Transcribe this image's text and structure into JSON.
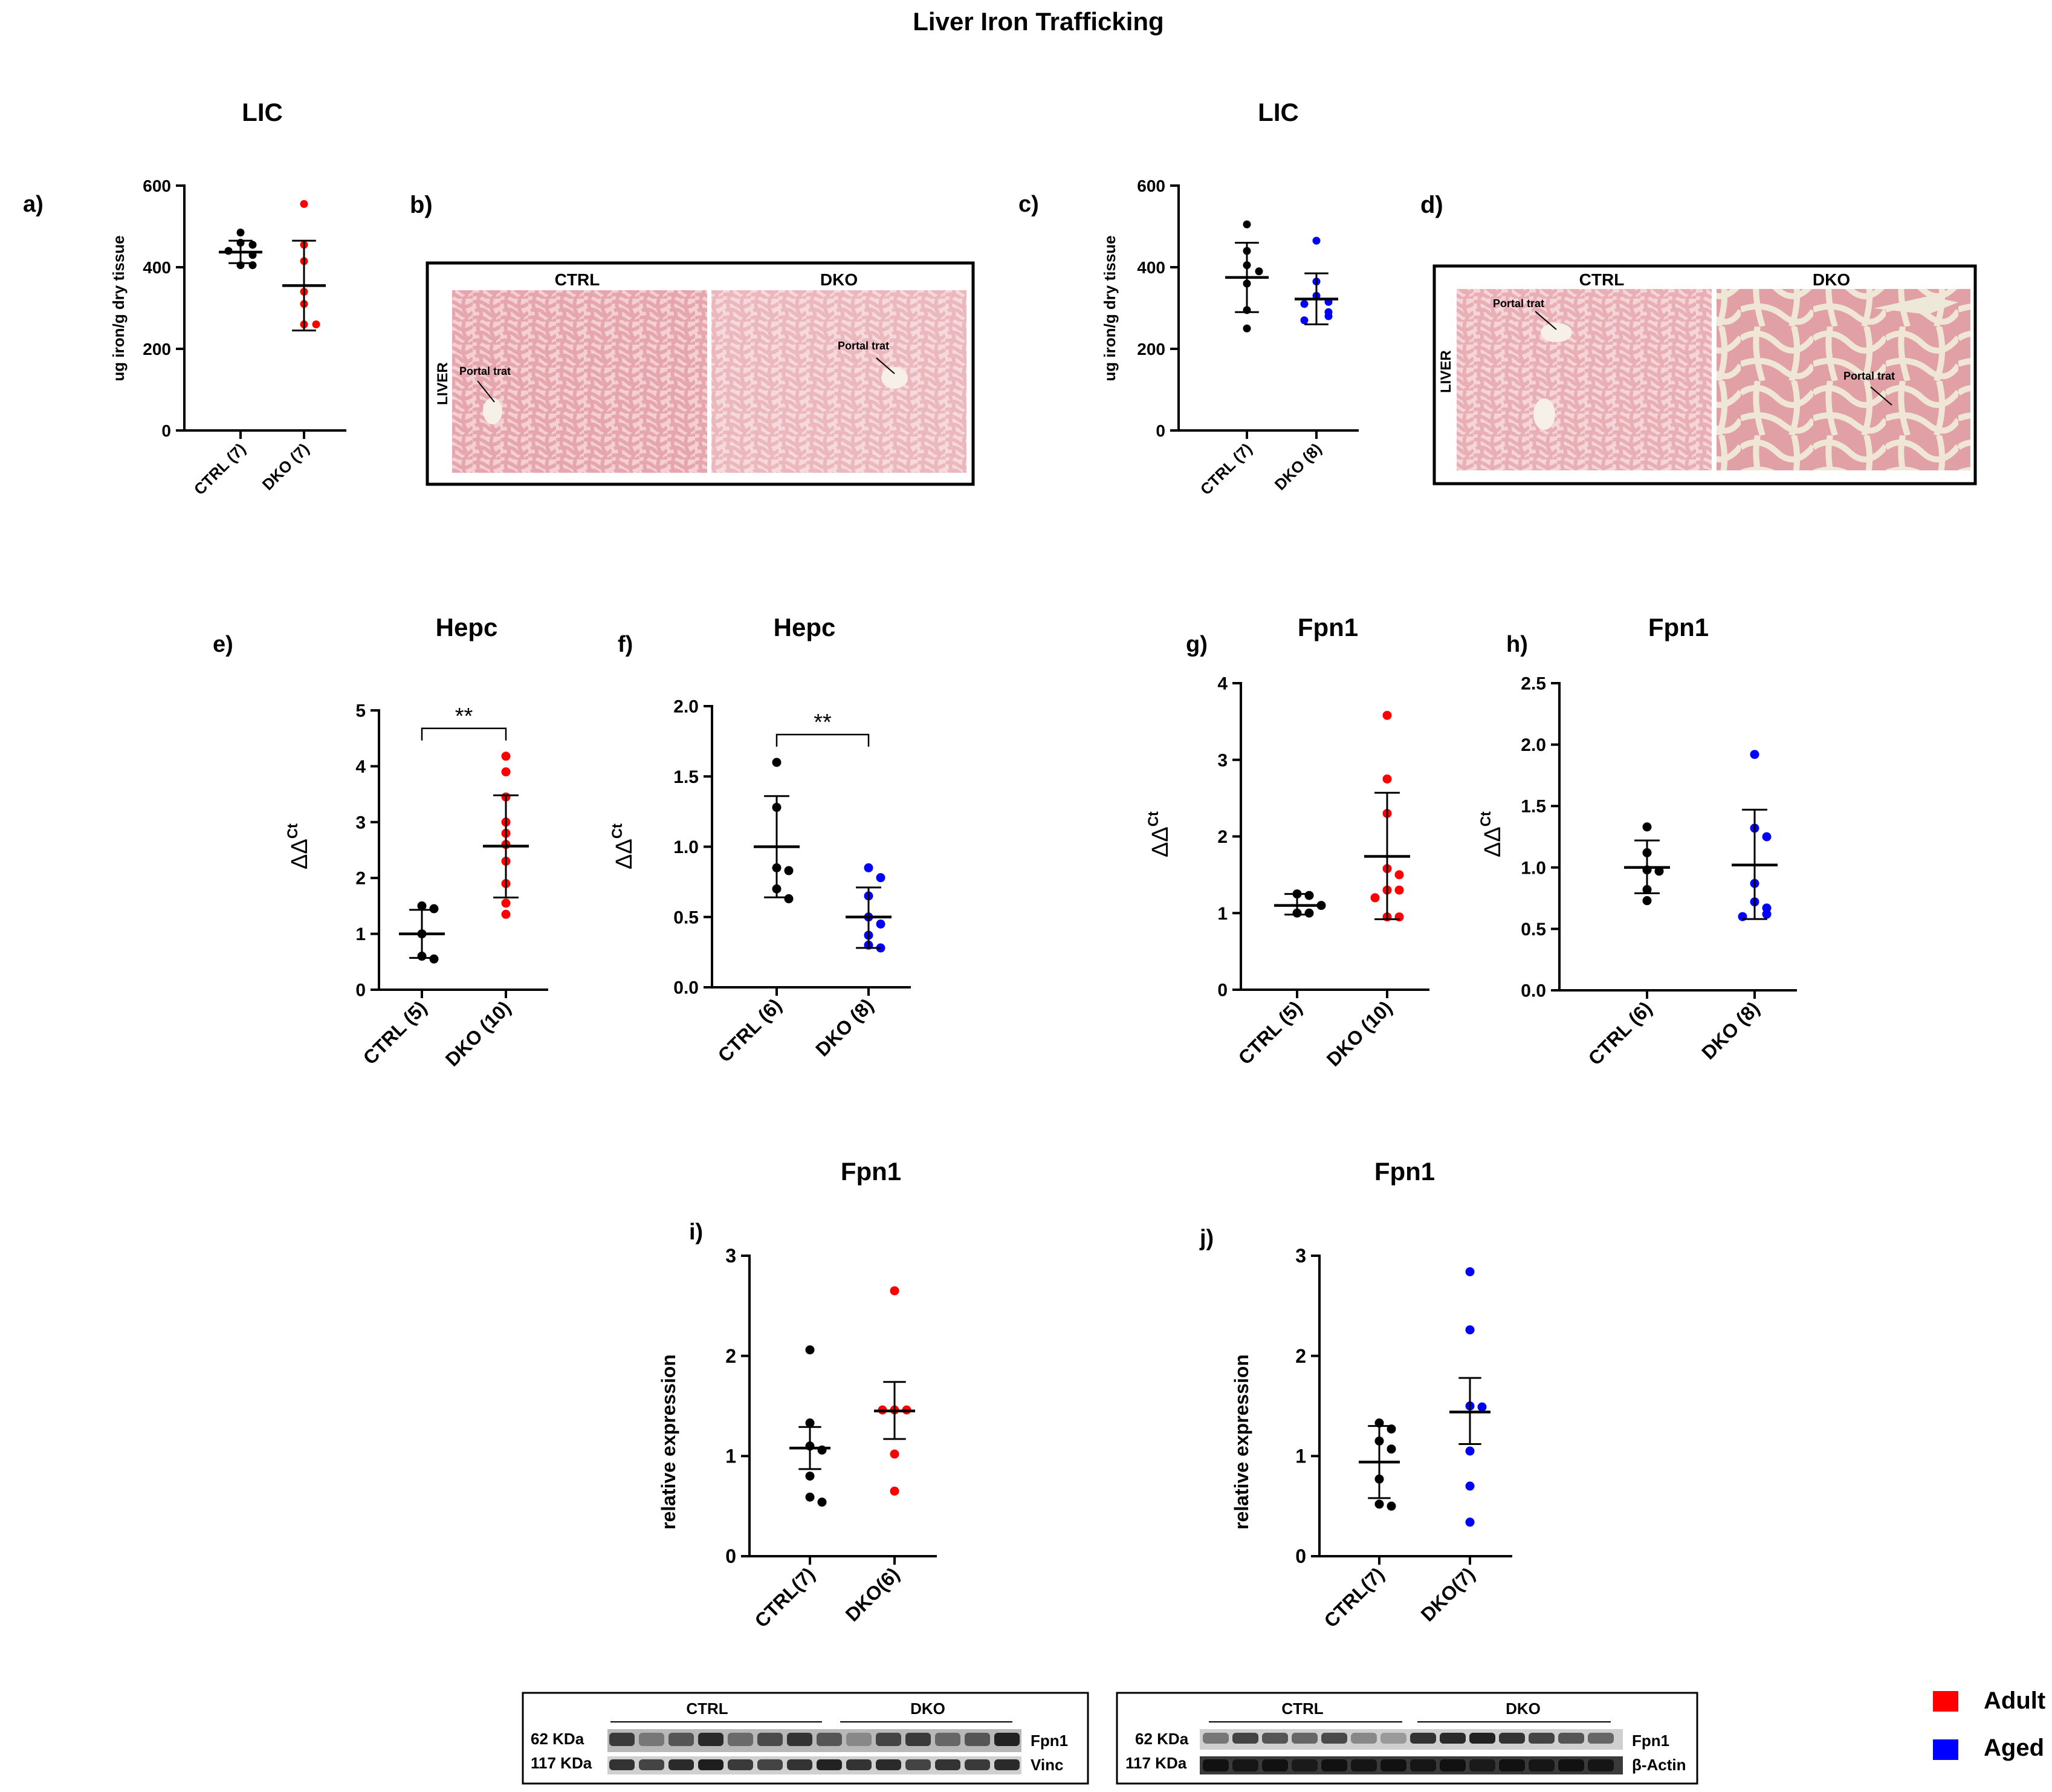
{
  "title": "Liver Iron Trafficking",
  "colors": {
    "ctrl": "#000000",
    "adult": "#ff0000",
    "aged": "#0000ff",
    "axis": "#000000",
    "tissue": "#e8a0a8",
    "tissue_bg": "#f4c8c8"
  },
  "legend": [
    {
      "label": "Adult",
      "color": "#ff0000"
    },
    {
      "label": "Aged",
      "color": "#0000ff"
    }
  ],
  "panels": {
    "a": {
      "letter": "a)",
      "title": "LIC"
    },
    "b": {
      "letter": "b)",
      "row_label": "LIVER",
      "left": "CTRL",
      "right": "DKO",
      "annot_left": "Portal trat",
      "annot_right": "Portal trat"
    },
    "c": {
      "letter": "c)",
      "title": "LIC"
    },
    "d": {
      "letter": "d)",
      "row_label": "LIVER",
      "left": "CTRL",
      "right": "DKO",
      "annot_left": "Portal trat",
      "annot_right": "Portal trat"
    },
    "e": {
      "letter": "e)",
      "title": "Hepc"
    },
    "f": {
      "letter": "f)",
      "title": "Hepc"
    },
    "g": {
      "letter": "g)",
      "title": "Fpn1"
    },
    "h": {
      "letter": "h)",
      "title": "Fpn1"
    },
    "i": {
      "letter": "i)",
      "title": "Fpn1"
    },
    "j": {
      "letter": "j)",
      "title": "Fpn1"
    }
  },
  "blots": [
    {
      "group1": "CTRL",
      "group2": "DKO",
      "row1_kda": "62 KDa",
      "row1_label": "Fpn1",
      "row2_kda": "117 KDa",
      "row2_label": "Vinc"
    },
    {
      "group1": "CTRL",
      "group2": "DKO",
      "row1_kda": "62 KDa",
      "row1_label": "Fpn1",
      "row2_kda": "117 KDa",
      "row2_label": "β-Actin"
    }
  ],
  "chart_data": [
    {
      "id": "a",
      "type": "scatter",
      "title": "LIC",
      "ylabel": "ug iron/g dry tissue",
      "ylim": [
        0,
        600
      ],
      "yticks": [
        "0",
        "200",
        "400",
        "600"
      ],
      "categories": [
        "CTRL (7)",
        "DKO (7)"
      ],
      "colors": [
        "#000000",
        "#ff0000"
      ],
      "sig": "",
      "series": [
        {
          "name": "CTRL (7)",
          "values": [
            485,
            460,
            455,
            440,
            430,
            405,
            405
          ],
          "mean": 437,
          "err": [
            410,
            465
          ]
        },
        {
          "name": "DKO (7)",
          "values": [
            555,
            455,
            415,
            340,
            310,
            260,
            260
          ],
          "mean": 355,
          "err": [
            245,
            465
          ]
        }
      ]
    },
    {
      "id": "c",
      "type": "scatter",
      "title": "LIC",
      "ylabel": "ug iron/g dry tissue",
      "ylim": [
        0,
        600
      ],
      "yticks": [
        "0",
        "200",
        "400",
        "600"
      ],
      "categories": [
        "CTRL (7)",
        "DKO (8)"
      ],
      "colors": [
        "#000000",
        "#0000ff"
      ],
      "sig": "",
      "series": [
        {
          "name": "CTRL (7)",
          "values": [
            505,
            440,
            405,
            390,
            360,
            295,
            250
          ],
          "mean": 375,
          "err": [
            290,
            460
          ]
        },
        {
          "name": "DKO (8)",
          "values": [
            465,
            365,
            330,
            315,
            310,
            290,
            280,
            270
          ],
          "mean": 322,
          "err": [
            260,
            385
          ]
        }
      ]
    },
    {
      "id": "e",
      "type": "scatter",
      "title": "Hepc",
      "ylabel": "ΔΔCt",
      "ylim": [
        0,
        5
      ],
      "yticks": [
        "0",
        "1",
        "2",
        "3",
        "4",
        "5"
      ],
      "categories": [
        "CTRL (5)",
        "DKO (10)"
      ],
      "colors": [
        "#000000",
        "#ff0000"
      ],
      "sig": "**",
      "series": [
        {
          "name": "CTRL (5)",
          "values": [
            1.5,
            1.45,
            1.0,
            0.6,
            0.55
          ],
          "mean": 1.0,
          "err": [
            0.57,
            1.43
          ]
        },
        {
          "name": "DKO (10)",
          "values": [
            4.18,
            3.9,
            3.45,
            3.0,
            2.8,
            2.6,
            2.3,
            1.9,
            1.55,
            1.35
          ],
          "mean": 2.57,
          "err": [
            1.65,
            3.48
          ]
        }
      ]
    },
    {
      "id": "f",
      "type": "scatter",
      "title": "Hepc",
      "ylabel": "ΔΔCt",
      "ylim": [
        0,
        2
      ],
      "yticks": [
        "0.0",
        "0.5",
        "1.0",
        "1.5",
        "2.0"
      ],
      "categories": [
        "CTRL (6)",
        "DKO (8)"
      ],
      "colors": [
        "#000000",
        "#0000ff"
      ],
      "sig": "**",
      "series": [
        {
          "name": "CTRL (6)",
          "values": [
            1.6,
            1.28,
            0.85,
            0.83,
            0.7,
            0.63
          ],
          "mean": 1.0,
          "err": [
            0.64,
            1.36
          ]
        },
        {
          "name": "DKO (8)",
          "values": [
            0.85,
            0.78,
            0.65,
            0.5,
            0.45,
            0.37,
            0.3,
            0.28
          ],
          "mean": 0.5,
          "err": [
            0.28,
            0.71
          ]
        }
      ]
    },
    {
      "id": "g",
      "type": "scatter",
      "title": "Fpn1",
      "ylabel": "ΔΔCt",
      "ylim": [
        0,
        4
      ],
      "yticks": [
        "0",
        "1",
        "2",
        "3",
        "4"
      ],
      "categories": [
        "CTRL (5)",
        "DKO (10)"
      ],
      "colors": [
        "#000000",
        "#ff0000"
      ],
      "sig": "",
      "series": [
        {
          "name": "CTRL (5)",
          "values": [
            1.25,
            1.23,
            1.0,
            1.0,
            1.1
          ],
          "mean": 1.1,
          "err": [
            0.98,
            1.25
          ]
        },
        {
          "name": "DKO (10)",
          "values": [
            3.58,
            2.75,
            2.3,
            1.58,
            1.5,
            1.3,
            1.3,
            1.2,
            0.95,
            0.95
          ],
          "mean": 1.74,
          "err": [
            0.92,
            2.57
          ]
        }
      ]
    },
    {
      "id": "h",
      "type": "scatter",
      "title": "Fpn1",
      "ylabel": "ΔΔCt",
      "ylim": [
        0,
        2.5
      ],
      "yticks": [
        "0.0",
        "0.5",
        "1.0",
        "1.5",
        "2.0",
        "2.5"
      ],
      "categories": [
        "CTRL (6)",
        "DKO (8)"
      ],
      "colors": [
        "#000000",
        "#0000ff"
      ],
      "sig": "",
      "series": [
        {
          "name": "CTRL (6)",
          "values": [
            1.33,
            1.12,
            0.98,
            0.97,
            0.82,
            0.73
          ],
          "mean": 1.0,
          "err": [
            0.79,
            1.22
          ]
        },
        {
          "name": "DKO (8)",
          "values": [
            1.92,
            1.32,
            1.25,
            0.87,
            0.72,
            0.67,
            0.62,
            0.6
          ],
          "mean": 1.02,
          "err": [
            0.58,
            1.47
          ]
        }
      ]
    },
    {
      "id": "i",
      "type": "scatter",
      "title": "Fpn1",
      "ylabel": "relative expression",
      "ylim": [
        0,
        3
      ],
      "yticks": [
        "0",
        "1",
        "2",
        "3"
      ],
      "categories": [
        "CTRL(7)",
        "DKO(6)"
      ],
      "colors": [
        "#000000",
        "#ff0000"
      ],
      "sig": "",
      "series": [
        {
          "name": "CTRL(7)",
          "values": [
            2.06,
            1.33,
            1.1,
            1.06,
            0.8,
            0.59,
            0.54
          ],
          "mean": 1.08,
          "err": [
            0.87,
            1.29
          ]
        },
        {
          "name": "DKO(6)",
          "values": [
            2.65,
            1.46,
            1.46,
            1.46,
            1.02,
            0.65
          ],
          "mean": 1.45,
          "err": [
            1.17,
            1.74
          ]
        }
      ]
    },
    {
      "id": "j",
      "type": "scatter",
      "title": "Fpn1",
      "ylabel": "relative expression",
      "ylim": [
        0,
        3
      ],
      "yticks": [
        "0",
        "1",
        "2",
        "3"
      ],
      "categories": [
        "CTRL(7)",
        "DKO(7)"
      ],
      "colors": [
        "#000000",
        "#0000ff"
      ],
      "sig": "",
      "series": [
        {
          "name": "CTRL(7)",
          "values": [
            1.33,
            1.27,
            1.15,
            1.07,
            0.77,
            0.52,
            0.5
          ],
          "mean": 0.94,
          "err": [
            0.58,
            1.3
          ]
        },
        {
          "name": "DKO(7)",
          "values": [
            2.84,
            2.26,
            1.5,
            1.49,
            1.05,
            0.7,
            0.34
          ],
          "mean": 1.44,
          "err": [
            1.12,
            1.78
          ]
        }
      ]
    }
  ]
}
